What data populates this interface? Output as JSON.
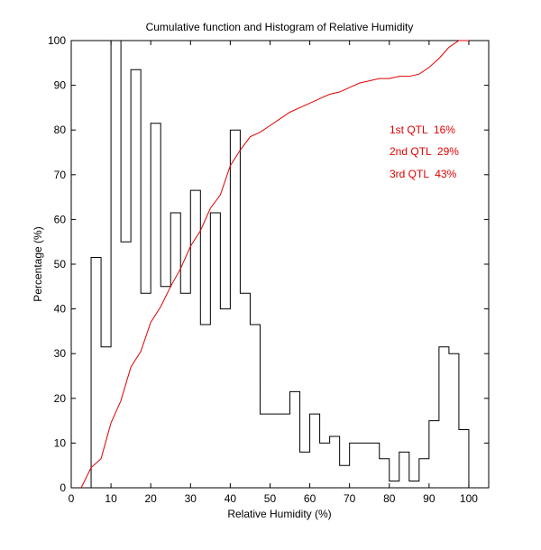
{
  "chart_data": {
    "type": "bar",
    "title": "Cumulative function and Histogram of Relative Humidity",
    "xlabel": "Relative Humidity (%)",
    "ylabel": "Percentage (%)",
    "xlim": [
      0,
      105
    ],
    "ylim": [
      0,
      100
    ],
    "xticks": [
      0,
      10,
      20,
      30,
      40,
      50,
      60,
      70,
      80,
      90,
      100
    ],
    "yticks": [
      0,
      10,
      20,
      30,
      40,
      50,
      60,
      70,
      80,
      90,
      100
    ],
    "series": [
      {
        "name": "Histogram",
        "style": "stairs",
        "color": "#000000",
        "edges": [
          5,
          7.5,
          10,
          12.5,
          15,
          17.5,
          20,
          22.5,
          25,
          27.5,
          30,
          32.5,
          35,
          37.5,
          40,
          42.5,
          45,
          47.5,
          55,
          57.5,
          60,
          62.5,
          65,
          67.5,
          70,
          77.5,
          80,
          82.5,
          85,
          87.5,
          90,
          92.5,
          95,
          97.5,
          100
        ],
        "values": [
          51.5,
          31.5,
          100,
          55,
          93.5,
          43.5,
          81.5,
          45,
          61.5,
          43.5,
          66.5,
          36.5,
          61.5,
          40,
          80,
          43.5,
          36.5,
          16.5,
          21.5,
          8,
          16.5,
          10,
          11.5,
          5,
          10,
          6.5,
          1.5,
          8,
          1.5,
          6.5,
          15,
          31.5,
          30,
          13
        ]
      },
      {
        "name": "Cumulative function",
        "style": "line",
        "color": "#e00000",
        "x": [
          2.5,
          5,
          7.5,
          10,
          12.5,
          15,
          17.5,
          20,
          22.5,
          25,
          27.5,
          30,
          32.5,
          35,
          37.5,
          40,
          42.5,
          45,
          47.5,
          50,
          52.5,
          55,
          57.5,
          60,
          62.5,
          65,
          67.5,
          70,
          72.5,
          75,
          77.5,
          80,
          82.5,
          85,
          87.5,
          90,
          92.5,
          95,
          97.5,
          100
        ],
        "values": [
          0,
          4.5,
          6.5,
          14.5,
          19.5,
          27,
          30.5,
          37,
          40.5,
          45,
          49,
          54,
          57.5,
          62.5,
          65.5,
          72,
          75.5,
          78.5,
          79.5,
          81,
          82.5,
          84,
          85,
          86,
          87,
          88,
          88.5,
          89.5,
          90.5,
          91,
          91.5,
          91.5,
          92,
          92,
          92.5,
          94,
          96,
          98.5,
          100,
          100
        ]
      }
    ],
    "annotations": [
      "1st QTL  16%",
      "2nd QTL  29%",
      "3rd QTL  43%"
    ]
  }
}
